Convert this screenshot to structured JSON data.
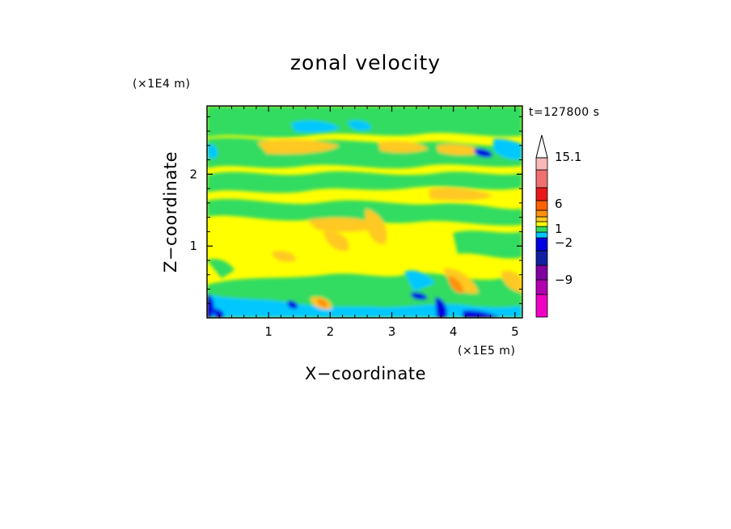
{
  "chart_data": {
    "type": "heatmap",
    "title": "zonal velocity",
    "xlabel": "X−coordinate",
    "ylabel": "Z−coordinate",
    "x_unit": "(×1E5 m)",
    "y_unit": "(×1E4 m)",
    "time_label": "t=127800 s",
    "xlim": [
      0,
      5.12
    ],
    "ylim": [
      0,
      2.95
    ],
    "x_ticks": [
      "1",
      "2",
      "3",
      "4",
      "5"
    ],
    "y_ticks": [
      "1",
      "2"
    ],
    "colorbar": {
      "levels": [
        {
          "color": "#f000c0"
        },
        {
          "color": "#b000b0"
        },
        {
          "color": "#8000a0"
        },
        {
          "color": "#1020a0"
        },
        {
          "color": "#0000e0"
        },
        {
          "color": "#00c8ff"
        },
        {
          "color": "#30dc60"
        },
        {
          "color": "#ffff00"
        },
        {
          "color": "#ffc820"
        },
        {
          "color": "#ff9010"
        },
        {
          "color": "#ff6000"
        },
        {
          "color": "#e81818"
        },
        {
          "color": "#f07070"
        },
        {
          "color": "#f8b8b8"
        }
      ],
      "extend_top_color": "#ffffff",
      "labels": [
        "15.1",
        "6",
        "1",
        "−2",
        "−9"
      ]
    },
    "field_description_colors": {
      "background": "#ffff00",
      "green": "#30dc60",
      "cyan": "#00c8ff",
      "orange": "#ffc820",
      "blue": "#0000e0",
      "deep_orange": "#ff9010"
    }
  }
}
